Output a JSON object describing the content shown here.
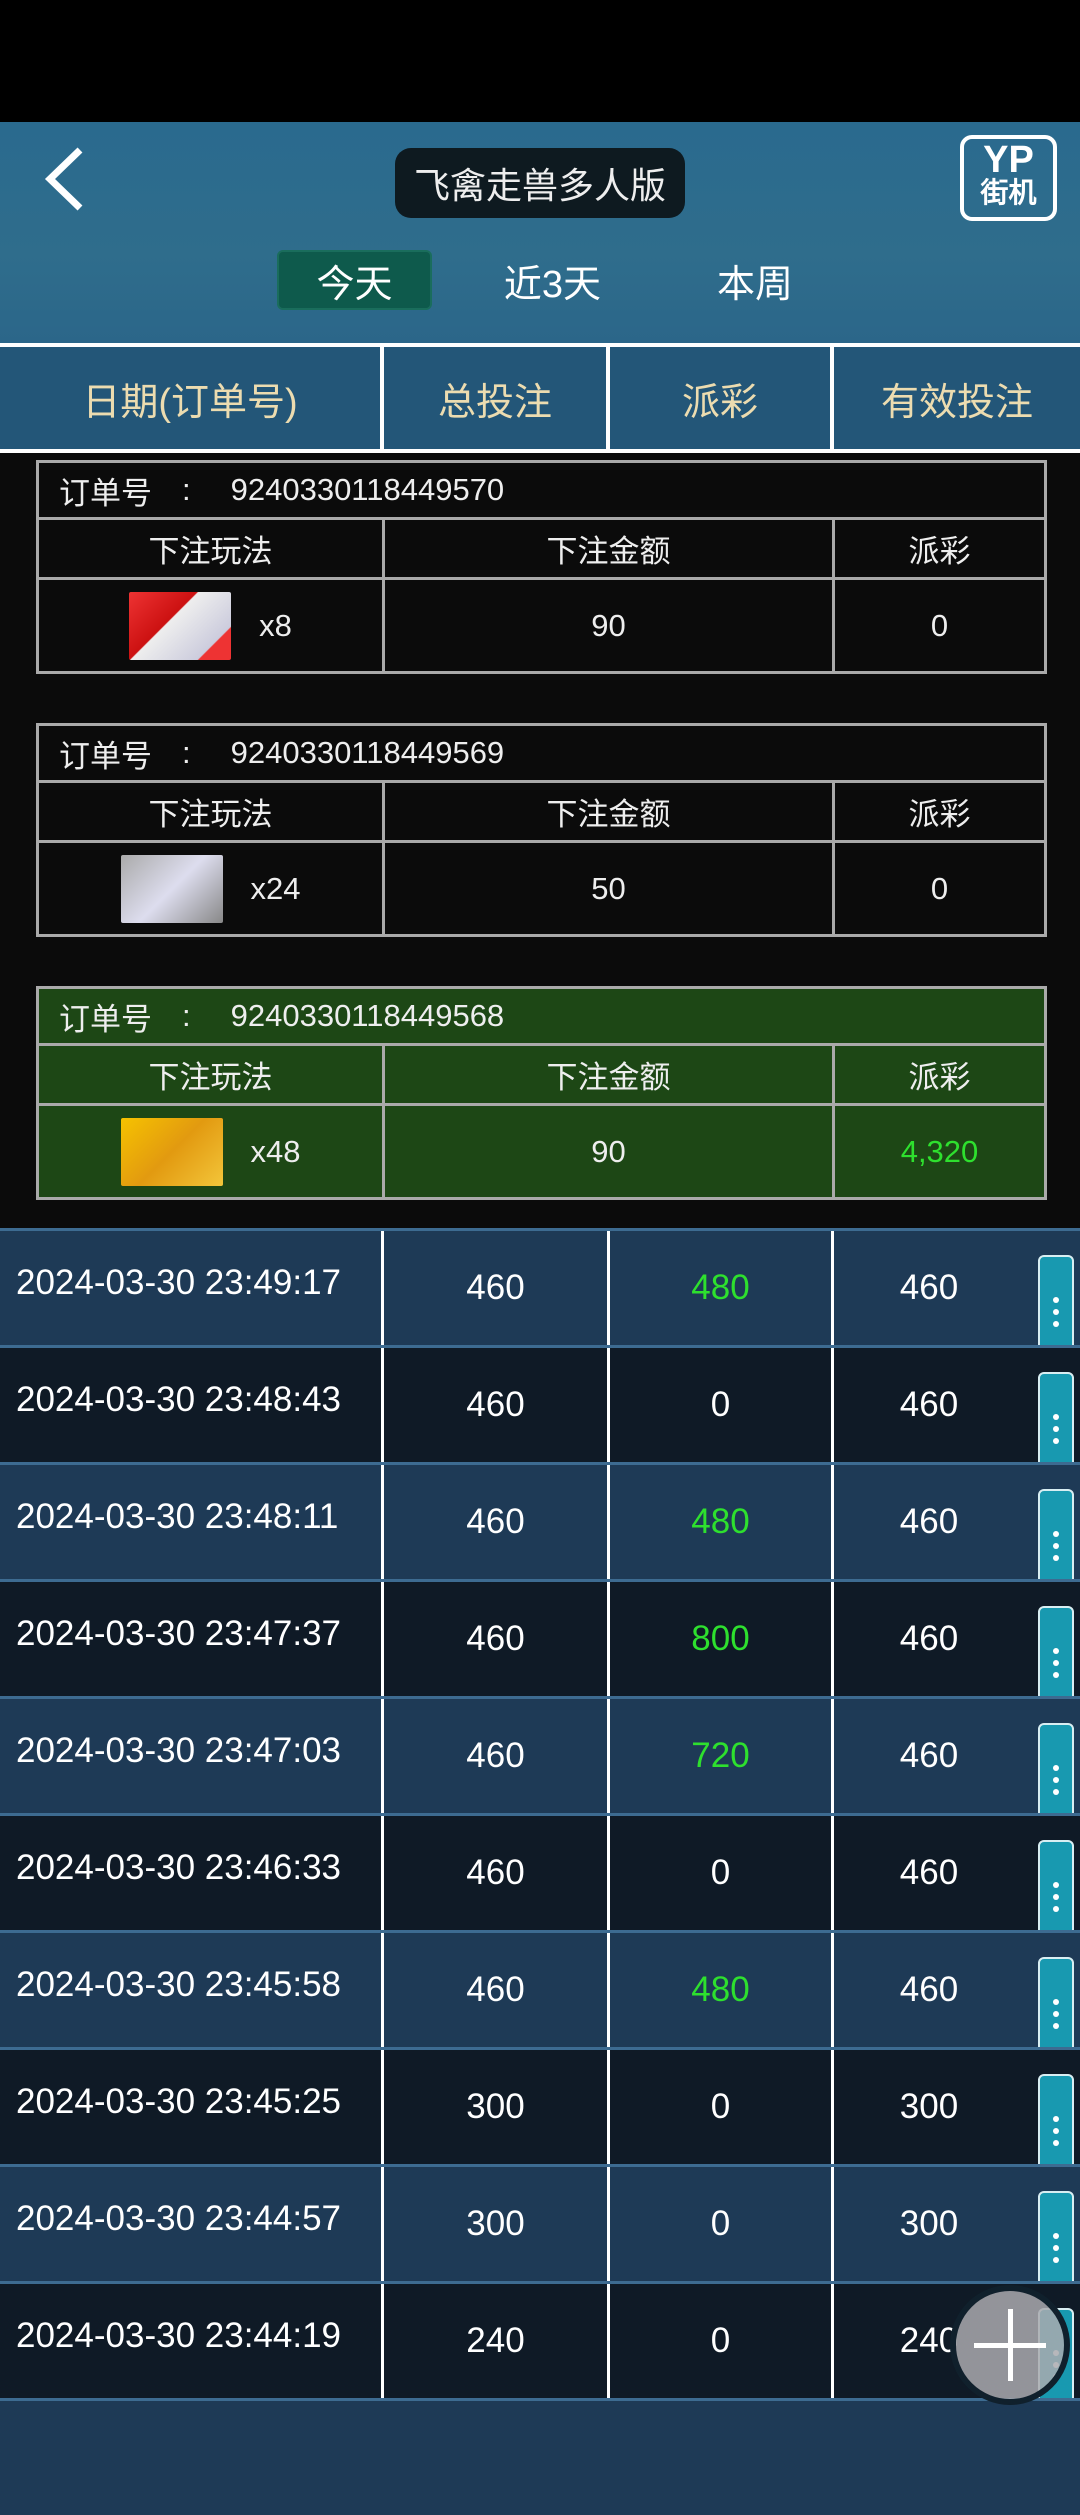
{
  "header": {
    "title": "飞禽走兽多人版",
    "logo_text": "YP 街机",
    "back_icon": "chevron-left-icon"
  },
  "tabs": [
    {
      "label": "今天",
      "active": true
    },
    {
      "label": "近3天",
      "active": false
    },
    {
      "label": "本周",
      "active": false
    }
  ],
  "columns": [
    "日期(订单号)",
    "总投注",
    "派彩",
    "有效投注"
  ],
  "orders": [
    {
      "order_label": "订单号",
      "order_no": "9240330118449570",
      "headers": [
        "下注玩法",
        "下注金额",
        "派彩"
      ],
      "icon": "white-crane",
      "multiplier": "x8",
      "amount": "90",
      "payout": "0",
      "winning": false
    },
    {
      "order_label": "订单号",
      "order_no": "9240330118449569",
      "headers": [
        "下注玩法",
        "下注金额",
        "派彩"
      ],
      "icon": "silver-shark",
      "multiplier": "x24",
      "amount": "50",
      "payout": "0",
      "winning": false
    },
    {
      "order_label": "订单号",
      "order_no": "9240330118449568",
      "headers": [
        "下注玩法",
        "下注金额",
        "派彩"
      ],
      "icon": "golden-shark",
      "multiplier": "x48",
      "amount": "90",
      "payout": "4,320",
      "winning": true
    }
  ],
  "rows": [
    {
      "date": "2024-03-30 23:49:17",
      "total": "460",
      "payout": "480",
      "valid": "460"
    },
    {
      "date": "2024-03-30 23:48:43",
      "total": "460",
      "payout": "0",
      "valid": "460"
    },
    {
      "date": "2024-03-30 23:48:11",
      "total": "460",
      "payout": "480",
      "valid": "460"
    },
    {
      "date": "2024-03-30 23:47:37",
      "total": "460",
      "payout": "800",
      "valid": "460"
    },
    {
      "date": "2024-03-30 23:47:03",
      "total": "460",
      "payout": "720",
      "valid": "460"
    },
    {
      "date": "2024-03-30 23:46:33",
      "total": "460",
      "payout": "0",
      "valid": "460"
    },
    {
      "date": "2024-03-30 23:45:58",
      "total": "460",
      "payout": "480",
      "valid": "460"
    },
    {
      "date": "2024-03-30 23:45:25",
      "total": "300",
      "payout": "0",
      "valid": "300"
    },
    {
      "date": "2024-03-30 23:44:57",
      "total": "300",
      "payout": "0",
      "valid": "300"
    },
    {
      "date": "2024-03-30 23:44:19",
      "total": "240",
      "payout": "0",
      "valid": "240"
    }
  ],
  "colors": {
    "win_green": "#2ee02e",
    "win_card": "#1d4715",
    "tab_active": "#0e5a4c",
    "header_text": "#ecdcb0",
    "menu_button": "#1899b0"
  }
}
